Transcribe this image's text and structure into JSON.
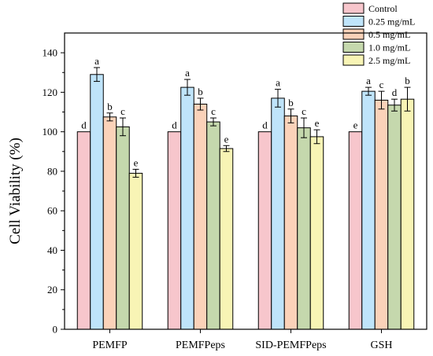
{
  "chart_data": {
    "type": "bar",
    "title": "",
    "xlabel": "",
    "ylabel": "Cell Viability (%)",
    "ylim": [
      0,
      150
    ],
    "yticks": [
      0,
      20,
      40,
      60,
      80,
      100,
      120,
      140
    ],
    "legend_position": "top-right",
    "grid": false,
    "categories": [
      "PEMFP",
      "PEMFPeps",
      "SID-PEMFPeps",
      "GSH"
    ],
    "series": [
      {
        "name": "Control",
        "color": "#f7c6cc",
        "values": [
          100,
          100,
          100,
          100
        ],
        "errors": [
          0,
          0,
          0,
          0
        ],
        "labels": [
          "d",
          "d",
          "d",
          "e"
        ]
      },
      {
        "name": "0.25 mg/mL",
        "color": "#bfe4fa",
        "values": [
          129,
          122.5,
          117,
          120.5
        ],
        "errors": [
          3.5,
          4,
          4.5,
          2
        ],
        "labels": [
          "a",
          "a",
          "a",
          "a"
        ]
      },
      {
        "name": "0.5 mg/mL",
        "color": "#fbd2b9",
        "values": [
          107.5,
          114,
          108,
          116
        ],
        "errors": [
          2,
          3,
          3.5,
          4.5
        ],
        "labels": [
          "b",
          "b",
          "b",
          "c"
        ]
      },
      {
        "name": "1.0 mg/mL",
        "color": "#c5d8ad",
        "values": [
          102.5,
          105,
          102,
          113.5
        ],
        "errors": [
          4.5,
          2,
          5,
          3
        ],
        "labels": [
          "c",
          "c",
          "c",
          "d"
        ]
      },
      {
        "name": "2.5 mg/mL",
        "color": "#f8f4b5",
        "values": [
          79,
          91.5,
          97.5,
          116.5
        ],
        "errors": [
          2,
          1.5,
          3.5,
          6
        ],
        "labels": [
          "e",
          "e",
          "e",
          "b"
        ]
      }
    ]
  }
}
